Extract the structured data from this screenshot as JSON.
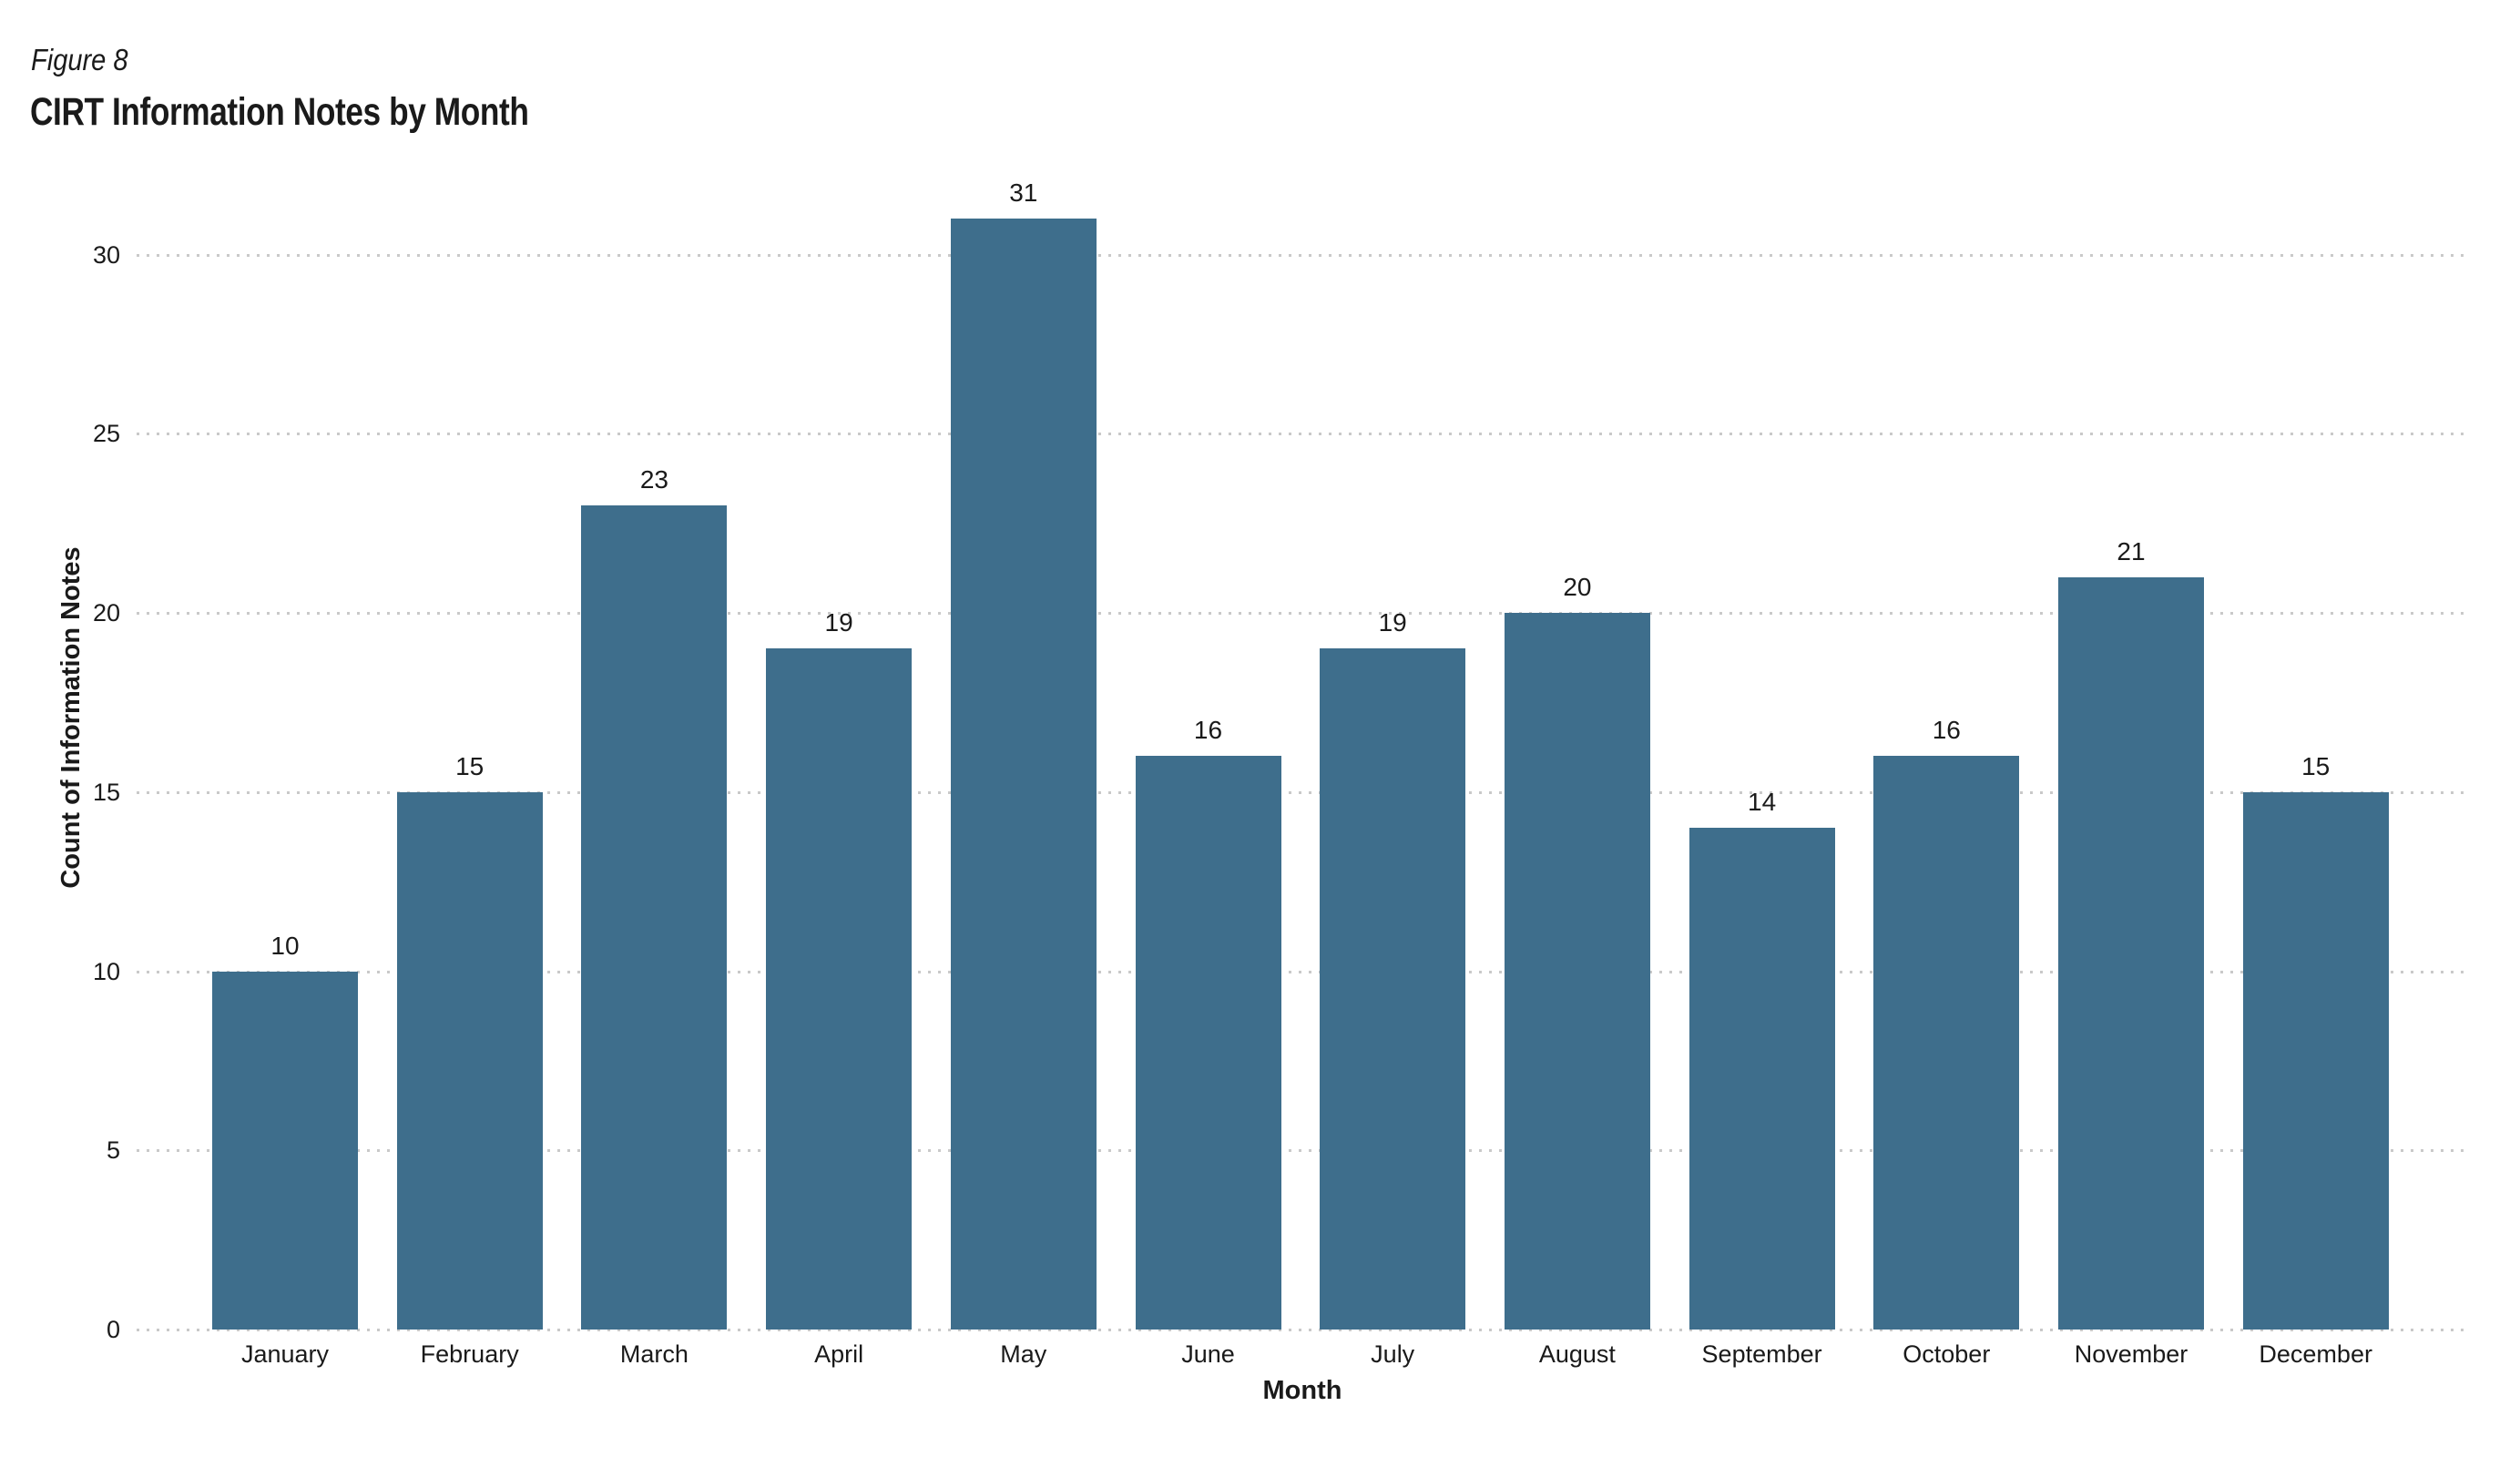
{
  "figure_label": "Figure 8",
  "chart_data": {
    "type": "bar",
    "title": "CIRT Information Notes by Month",
    "categories": [
      "January",
      "February",
      "March",
      "April",
      "May",
      "June",
      "July",
      "August",
      "September",
      "October",
      "November",
      "December"
    ],
    "values": [
      10,
      15,
      23,
      19,
      31,
      16,
      19,
      20,
      14,
      16,
      21,
      15
    ],
    "xlabel": "Month",
    "ylabel": "Count of Information Notes",
    "ylim": [
      0,
      30
    ],
    "ytick_step": 5,
    "ytick_labels": [
      "0",
      "5",
      "10",
      "15",
      "20",
      "25",
      "30"
    ],
    "grid": "horizontal-dotted",
    "legend": "none",
    "bar_color": "#3E6E8C",
    "gridline_color": "#C9C9C9",
    "text_color": "#1A1A1A",
    "background_color": "#FFFFFF"
  }
}
